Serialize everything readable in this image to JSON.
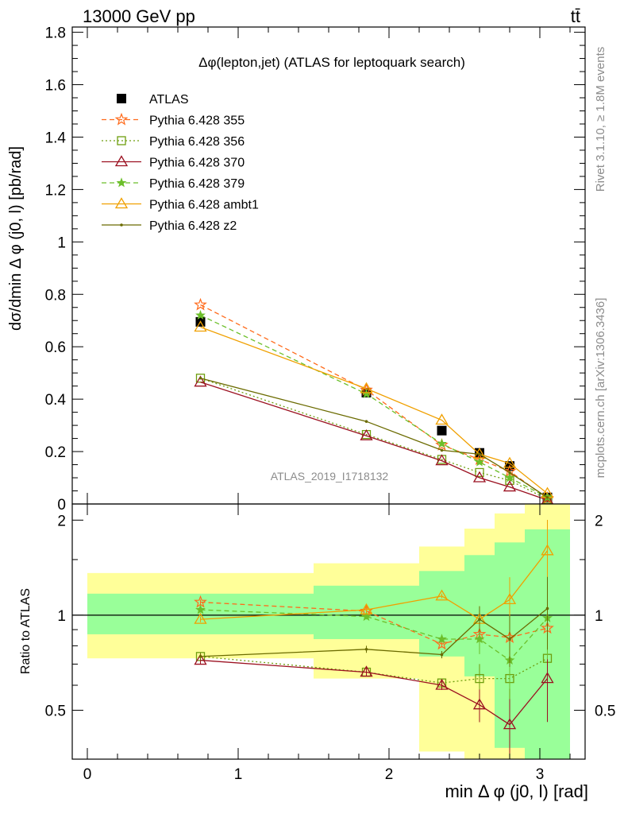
{
  "header": {
    "left": "13000 GeV pp",
    "right": "tt̄"
  },
  "side_text": {
    "top": "Rivet 3.1.10, ≥ 1.8M events",
    "bottom": "mcplots.cern.ch [arXiv:1306.3436]"
  },
  "analysis_id": "ATLAS_2019_I1718132",
  "chart_data": [
    {
      "type": "line",
      "title": "Δφ(lepton,jet) (ATLAS for leptoquark search)",
      "ylabel": "dσ/dmin Δ φ (j0, l) [pb/rad]",
      "ylim": [
        0,
        1.82
      ],
      "yticks": [
        "0",
        "0.2",
        "0.4",
        "0.6",
        "0.8",
        "1",
        "1.2",
        "1.4",
        "1.6",
        "1.8"
      ],
      "ytick_values": [
        0,
        0.2,
        0.4,
        0.6,
        0.8,
        1.0,
        1.2,
        1.4,
        1.6,
        1.8
      ],
      "xlim": [
        -0.1,
        3.3
      ],
      "x": [
        0.75,
        1.85,
        2.35,
        2.6,
        2.8,
        3.05
      ],
      "series": [
        {
          "name": "ATLAS",
          "color": "#000000",
          "marker": "square-filled",
          "dash": "none",
          "values": [
            0.695,
            0.425,
            0.28,
            0.195,
            0.145,
            0.025
          ]
        },
        {
          "name": "Pythia 6.428 355",
          "color": "#ff6a1a",
          "marker": "star-open",
          "dash": "dashed",
          "values": [
            0.76,
            0.435,
            0.225,
            0.17,
            0.125,
            0.022
          ]
        },
        {
          "name": "Pythia 6.428 356",
          "color": "#6e9e0e",
          "marker": "square-open",
          "dash": "dotted",
          "values": [
            0.48,
            0.265,
            0.17,
            0.12,
            0.09,
            0.018
          ]
        },
        {
          "name": "Pythia 6.428 370",
          "color": "#9b1020",
          "marker": "triangle-open",
          "dash": "solid",
          "values": [
            0.465,
            0.26,
            0.165,
            0.1,
            0.065,
            0.015
          ]
        },
        {
          "name": "Pythia 6.428 379",
          "color": "#6cbf2a",
          "marker": "star-filled",
          "dash": "dashed",
          "values": [
            0.72,
            0.42,
            0.23,
            0.16,
            0.1,
            0.025
          ]
        },
        {
          "name": "Pythia 6.428 ambt1",
          "color": "#f0a000",
          "marker": "triangle-open",
          "dash": "solid",
          "values": [
            0.675,
            0.44,
            0.32,
            0.19,
            0.155,
            0.04
          ]
        },
        {
          "name": "Pythia 6.428 z2",
          "color": "#6b6b00",
          "marker": "dot",
          "dash": "solid",
          "values": [
            0.48,
            0.315,
            0.205,
            0.19,
            0.12,
            0.025
          ]
        }
      ]
    },
    {
      "type": "line",
      "ylabel": "Ratio to ATLAS",
      "xlabel": "min Δ φ (j0, l) [rad]",
      "ylim": [
        0.35,
        2.25
      ],
      "yticks": [
        "0.5",
        "1",
        "2"
      ],
      "ytick_values": [
        0.5,
        1,
        2
      ],
      "xlim": [
        -0.1,
        3.3
      ],
      "xticks": [
        "0",
        "1",
        "2",
        "3"
      ],
      "xtick_values": [
        0,
        1,
        2,
        3
      ],
      "x": [
        0.75,
        1.85,
        2.35,
        2.6,
        2.8,
        3.05
      ],
      "bands": {
        "bin_edges": [
          0,
          1.5,
          2.2,
          2.5,
          2.7,
          2.9,
          3.2
        ],
        "green": [
          [
            0.87,
            1.17
          ],
          [
            0.84,
            1.24
          ],
          [
            0.74,
            1.38
          ],
          [
            0.64,
            1.55
          ],
          [
            0.38,
            1.7
          ],
          [
            0.3,
            1.87
          ]
        ],
        "yellow": [
          [
            0.73,
            1.36
          ],
          [
            0.63,
            1.46
          ],
          [
            0.37,
            1.65
          ],
          [
            0.3,
            1.88
          ],
          [
            0.3,
            2.1
          ],
          [
            0.3,
            2.4
          ]
        ]
      },
      "series": [
        {
          "name": "Pythia 6.428 355",
          "values": [
            1.1,
            1.03,
            0.81,
            0.87,
            0.85,
            0.91
          ]
        },
        {
          "name": "Pythia 6.428 356",
          "values": [
            0.74,
            0.66,
            0.61,
            0.63,
            0.63,
            0.73
          ]
        },
        {
          "name": "Pythia 6.428 370",
          "values": [
            0.72,
            0.66,
            0.6,
            0.52,
            0.45,
            0.63
          ]
        },
        {
          "name": "Pythia 6.428 379",
          "values": [
            1.04,
            0.99,
            0.84,
            0.84,
            0.72,
            0.98
          ]
        },
        {
          "name": "Pythia 6.428 ambt1",
          "values": [
            0.97,
            1.04,
            1.15,
            0.97,
            1.12,
            1.6
          ]
        },
        {
          "name": "Pythia 6.428 z2",
          "values": [
            0.74,
            0.78,
            0.75,
            0.97,
            0.84,
            1.05
          ]
        }
      ]
    }
  ]
}
